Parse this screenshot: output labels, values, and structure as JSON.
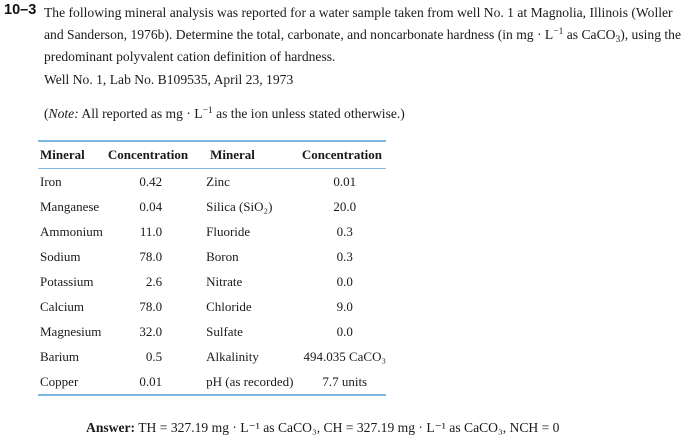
{
  "problem": {
    "number": "10–3",
    "text_a": "The following mineral analysis was reported for a water sample taken from well No. 1 at Magnolia, Illinois (Woller and Sanderson, 1976b). Determine the total, carbonate, and noncarbonate hardness (in mg · L",
    "unit_exp": "−1",
    "text_b": " as CaCO",
    "sub3": "3",
    "text_c": "), using the predominant polyvalent cation definition of hardness."
  },
  "well_info": "Well No. 1, Lab No. B109535, April 23, 1973",
  "note": {
    "label": "Note:",
    "text_a": " All reported as mg · L",
    "exp": "−1",
    "text_b": " as the ion unless stated otherwise.)",
    "open": "("
  },
  "table": {
    "headers": [
      "Mineral",
      "Concentration",
      "Mineral",
      "Concentration"
    ],
    "rows": [
      [
        "Iron",
        "0.42",
        "Zinc",
        "0.01"
      ],
      [
        "Manganese",
        "0.04",
        "Silica (SiO₂)",
        "20.0"
      ],
      [
        "Ammonium",
        "11.0",
        "Fluoride",
        "0.3"
      ],
      [
        "Sodium",
        "78.0",
        "Boron",
        "0.3"
      ],
      [
        "Potassium",
        "2.6",
        "Nitrate",
        "0.0"
      ],
      [
        "Calcium",
        "78.0",
        "Chloride",
        "9.0"
      ],
      [
        "Magnesium",
        "32.0",
        "Sulfate",
        "0.0"
      ],
      [
        "Barium",
        "0.5",
        "Alkalinity",
        "494.035 CaCO₃"
      ],
      [
        "Copper",
        "0.01",
        "pH (as recorded)",
        "7.7 units"
      ]
    ]
  },
  "answer": {
    "label": "Answer:",
    "text": "TH = 327.19 mg · L⁻¹ as CaCO₃, CH = 327.19 mg · L⁻¹ as CaCO₃, NCH = 0"
  }
}
